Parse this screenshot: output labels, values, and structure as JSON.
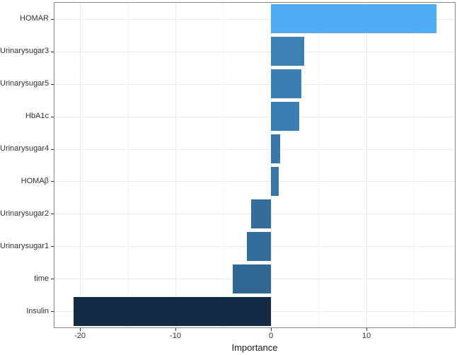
{
  "chart_data": {
    "type": "bar",
    "orientation": "horizontal",
    "title": "",
    "xlabel": "Importance",
    "ylabel": "",
    "categories": [
      "HOMAR",
      "Urinarysugar3",
      "Urinarysugar5",
      "HbA1c",
      "Urinarysugar4",
      "HOMAβ",
      "Urinarysugar2",
      "Urinarysugar1",
      "time",
      "Insulin"
    ],
    "values": [
      17.4,
      3.5,
      3.2,
      3.0,
      0.95,
      0.8,
      -2.1,
      -2.5,
      -4.0,
      -20.7
    ],
    "bar_colors": [
      "#50ACF5",
      "#3E80B5",
      "#3D7FB3",
      "#3D7EB2",
      "#3977A9",
      "#3876A8",
      "#346C9B",
      "#336B99",
      "#306692",
      "#132B43"
    ],
    "xlim": [
      -22.7,
      19.3
    ],
    "x_major_ticks": [
      -20,
      -10,
      0,
      10
    ],
    "x_major_tick_labels": [
      "-20",
      "-10",
      "0",
      "10"
    ],
    "x_minor_ticks": [
      -15,
      -5,
      5,
      15
    ],
    "grid": true,
    "legend": false,
    "bar_width_fraction": 0.9,
    "colors": {
      "gradient_low": "#132B43",
      "gradient_high": "#50ACF5",
      "panel_border": "#848484",
      "grid_major": "#ececec",
      "grid_minor": "#f5f5f5",
      "axis_text": "#303030",
      "background": "#ffffff"
    }
  }
}
